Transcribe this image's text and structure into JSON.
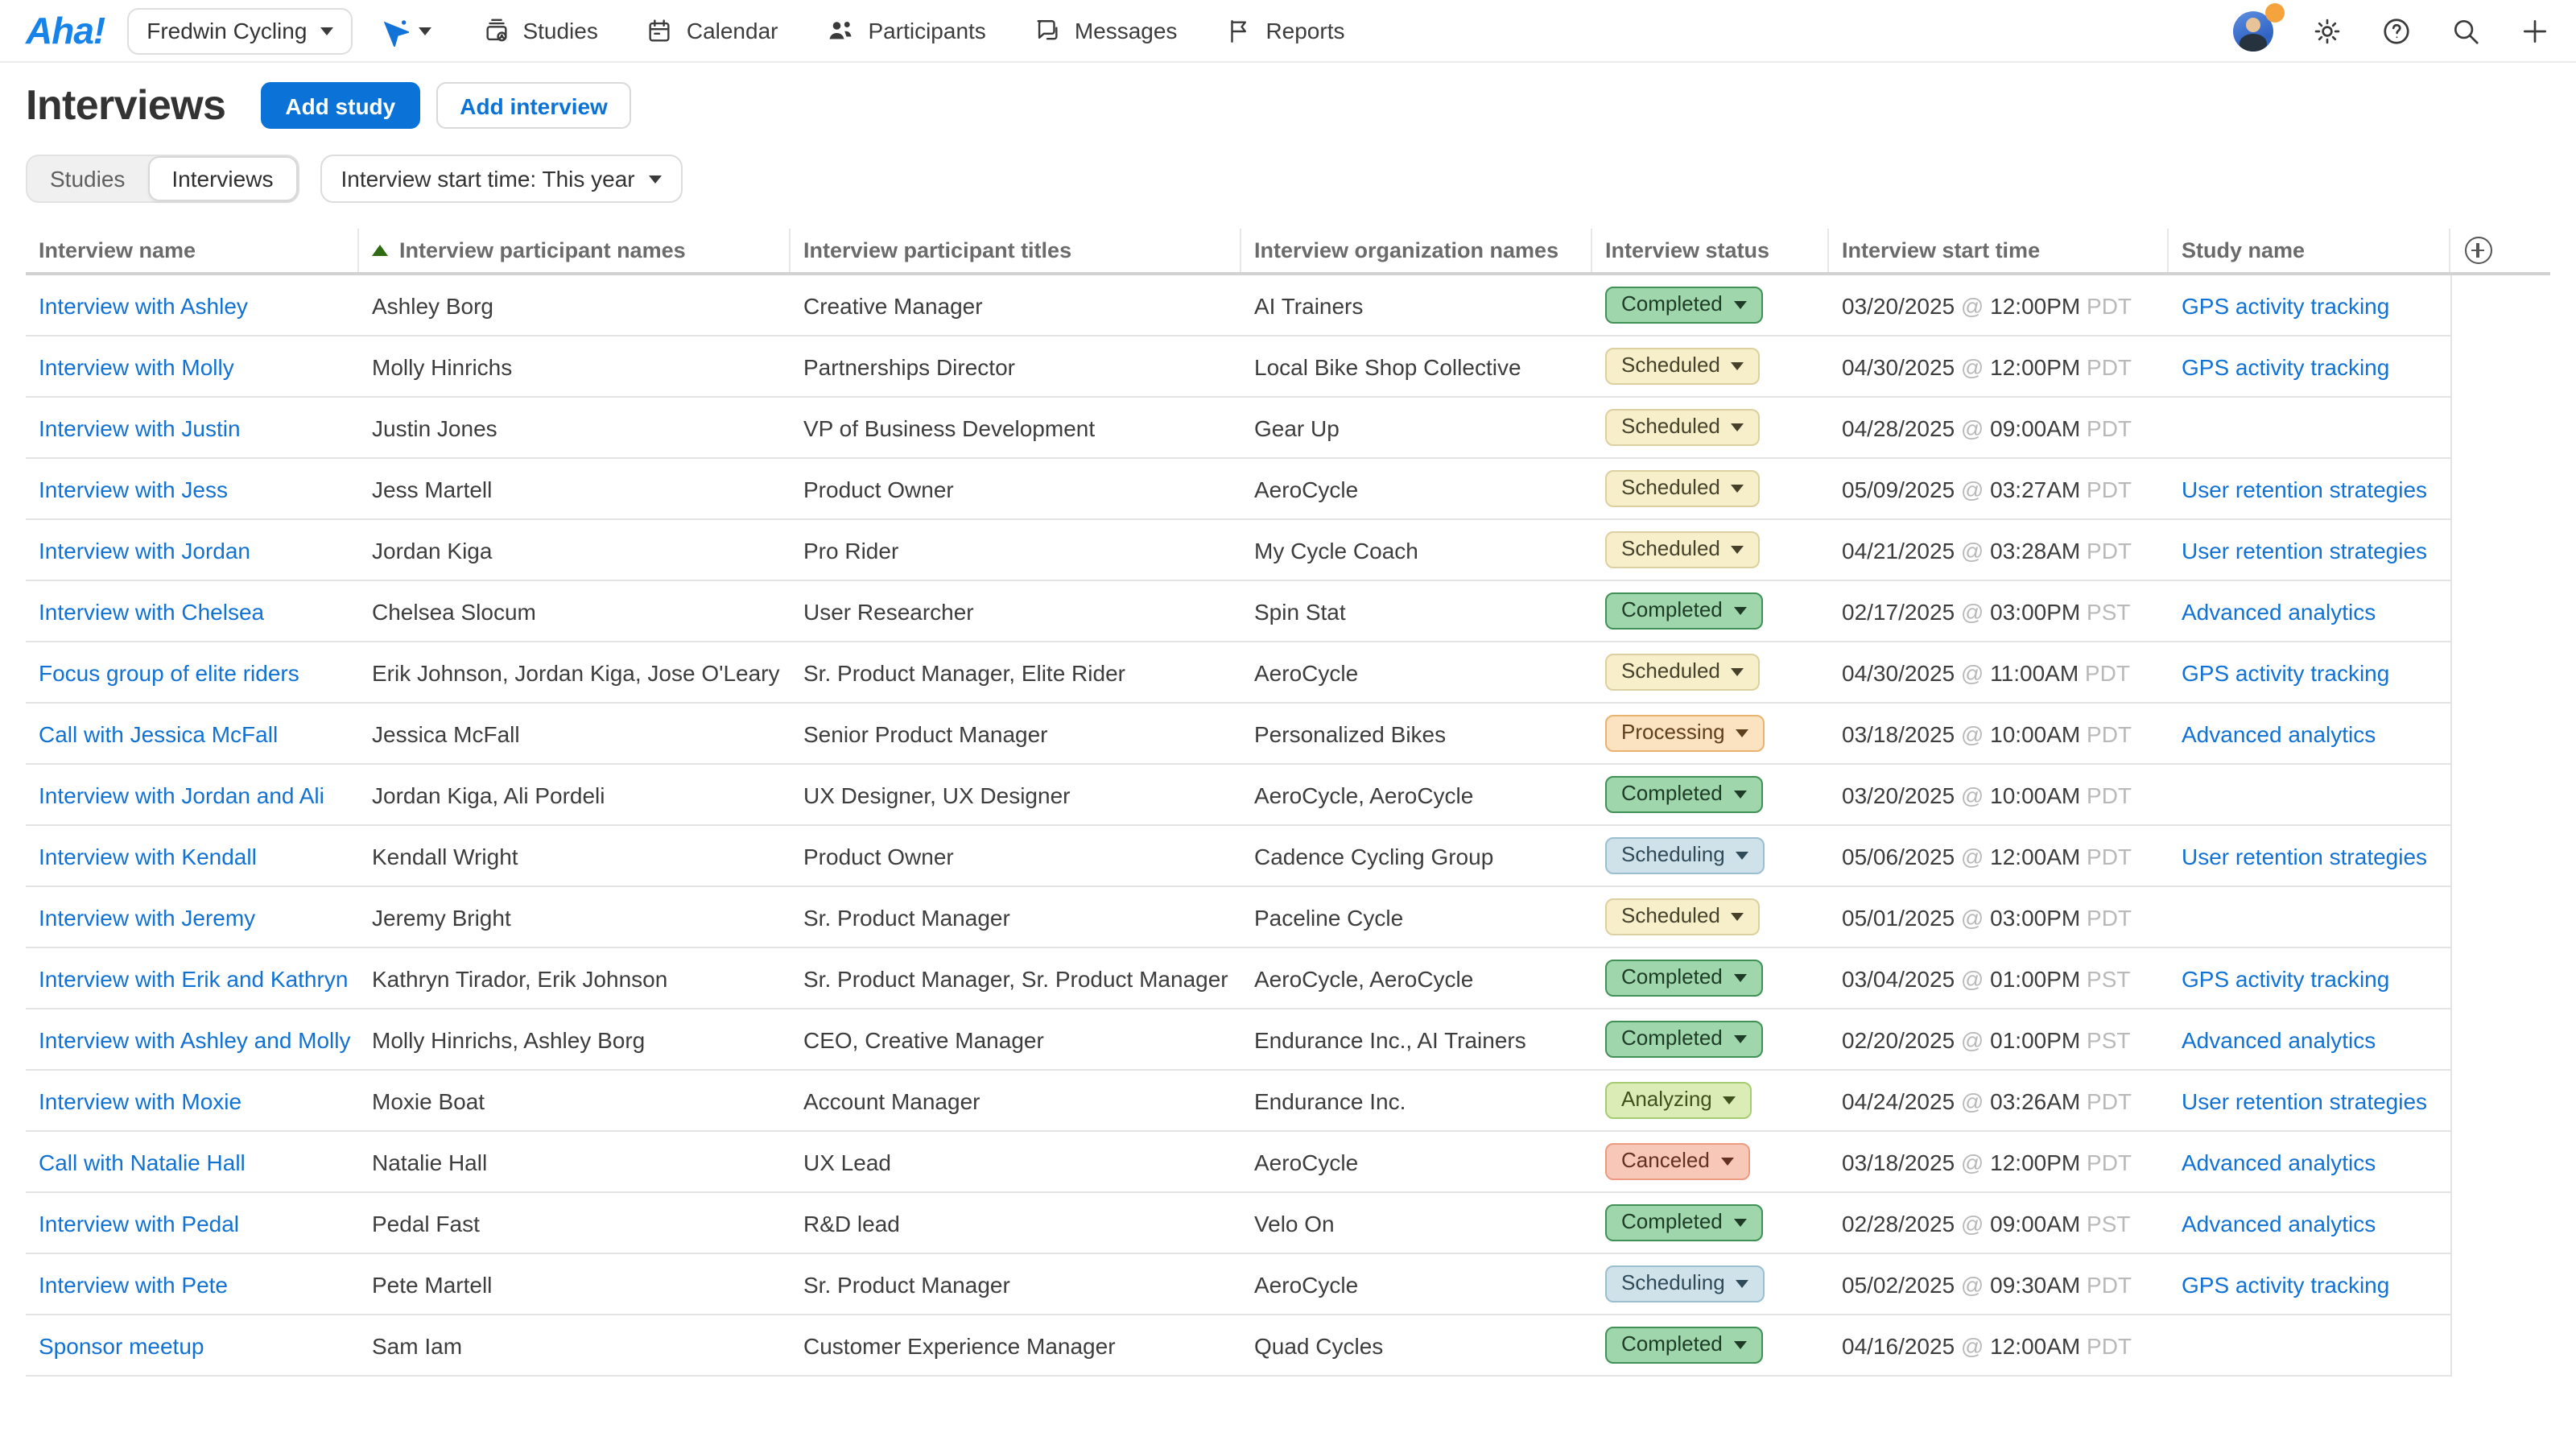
{
  "colors": {
    "accent_blue": "#0b73d7",
    "link_blue": "#1172d4",
    "logo_blue": "#1583e9",
    "presence_orange": "#f5a33c",
    "sort_arrow_green": "#2e6b12"
  },
  "topbar": {
    "logo": "Aha!",
    "workspace": "Fredwin Cycling",
    "nav": [
      {
        "label": "Studies"
      },
      {
        "label": "Calendar"
      },
      {
        "label": "Participants"
      },
      {
        "label": "Messages"
      },
      {
        "label": "Reports"
      }
    ]
  },
  "page": {
    "title": "Interviews",
    "add_study_label": "Add study",
    "add_interview_label": "Add interview",
    "segments": [
      {
        "label": "Studies",
        "selected": false
      },
      {
        "label": "Interviews",
        "selected": true
      }
    ],
    "filter_label": "Interview start time: This year"
  },
  "table": {
    "columns": [
      "Interview name",
      "Interview participant names",
      "Interview participant titles",
      "Interview organization names",
      "Interview status",
      "Interview start time",
      "Study name"
    ],
    "sort": {
      "column": "Interview participant names",
      "direction": "ascending"
    },
    "status_styles": {
      "Completed": {
        "bg": "#9fd6ab",
        "border": "#3f9156",
        "text": "#1d3b26"
      },
      "Scheduled": {
        "bg": "#f6efca",
        "border": "#ddd0a0",
        "text": "#45412a"
      },
      "Processing": {
        "bg": "#fbe2c0",
        "border": "#e9b26e",
        "text": "#5f401d"
      },
      "Scheduling": {
        "bg": "#cfe1e9",
        "border": "#9bbfd0",
        "text": "#2f4b59"
      },
      "Analyzing": {
        "bg": "#dcecb6",
        "border": "#a6cc71",
        "text": "#3f521e"
      },
      "Canceled": {
        "bg": "#f7c8b8",
        "border": "#ec9b81",
        "text": "#64301f"
      }
    },
    "rows": [
      {
        "name": "Interview with Ashley",
        "participants": "Ashley Borg",
        "titles": "Creative Manager",
        "orgs": "AI Trainers",
        "status": "Completed",
        "date": "03/20/2025",
        "time": "12:00PM",
        "tz": "PDT",
        "study": "GPS activity tracking"
      },
      {
        "name": "Interview with Molly",
        "participants": "Molly Hinrichs",
        "titles": "Partnerships Director",
        "orgs": "Local Bike Shop Collective",
        "status": "Scheduled",
        "date": "04/30/2025",
        "time": "12:00PM",
        "tz": "PDT",
        "study": "GPS activity tracking"
      },
      {
        "name": "Interview with Justin",
        "participants": "Justin Jones",
        "titles": "VP of Business Development",
        "orgs": "Gear Up",
        "status": "Scheduled",
        "date": "04/28/2025",
        "time": "09:00AM",
        "tz": "PDT",
        "study": ""
      },
      {
        "name": "Interview with Jess",
        "participants": "Jess Martell",
        "titles": "Product Owner",
        "orgs": "AeroCycle",
        "status": "Scheduled",
        "date": "05/09/2025",
        "time": "03:27AM",
        "tz": "PDT",
        "study": "User retention strategies"
      },
      {
        "name": "Interview with Jordan",
        "participants": "Jordan Kiga",
        "titles": "Pro Rider",
        "orgs": "My Cycle Coach",
        "status": "Scheduled",
        "date": "04/21/2025",
        "time": "03:28AM",
        "tz": "PDT",
        "study": "User retention strategies"
      },
      {
        "name": "Interview with Chelsea",
        "participants": "Chelsea Slocum",
        "titles": "User Researcher",
        "orgs": "Spin Stat",
        "status": "Completed",
        "date": "02/17/2025",
        "time": "03:00PM",
        "tz": "PST",
        "study": "Advanced analytics"
      },
      {
        "name": "Focus group of elite riders",
        "participants": "Erik Johnson, Jordan Kiga, Jose O'Leary",
        "titles": "Sr. Product Manager, Elite Rider",
        "orgs": "AeroCycle",
        "status": "Scheduled",
        "date": "04/30/2025",
        "time": "11:00AM",
        "tz": "PDT",
        "study": "GPS activity tracking"
      },
      {
        "name": "Call with Jessica McFall",
        "participants": "Jessica McFall",
        "titles": "Senior Product Manager",
        "orgs": "Personalized Bikes",
        "status": "Processing",
        "date": "03/18/2025",
        "time": "10:00AM",
        "tz": "PDT",
        "study": "Advanced analytics"
      },
      {
        "name": "Interview with Jordan and Ali",
        "participants": "Jordan Kiga, Ali Pordeli",
        "titles": "UX Designer, UX Designer",
        "orgs": "AeroCycle, AeroCycle",
        "status": "Completed",
        "date": "03/20/2025",
        "time": "10:00AM",
        "tz": "PDT",
        "study": ""
      },
      {
        "name": "Interview with Kendall",
        "participants": "Kendall Wright",
        "titles": "Product Owner",
        "orgs": "Cadence Cycling Group",
        "status": "Scheduling",
        "date": "05/06/2025",
        "time": "12:00AM",
        "tz": "PDT",
        "study": "User retention strategies"
      },
      {
        "name": "Interview with Jeremy",
        "participants": "Jeremy Bright",
        "titles": "Sr. Product Manager",
        "orgs": "Paceline Cycle",
        "status": "Scheduled",
        "date": "05/01/2025",
        "time": "03:00PM",
        "tz": "PDT",
        "study": ""
      },
      {
        "name": "Interview with Erik and Kathryn",
        "participants": "Kathryn Tirador, Erik Johnson",
        "titles": "Sr. Product Manager, Sr. Product Manager",
        "orgs": "AeroCycle, AeroCycle",
        "status": "Completed",
        "date": "03/04/2025",
        "time": "01:00PM",
        "tz": "PST",
        "study": "GPS activity tracking"
      },
      {
        "name": "Interview with Ashley and Molly",
        "participants": "Molly Hinrichs, Ashley Borg",
        "titles": "CEO, Creative Manager",
        "orgs": "Endurance Inc., AI Trainers",
        "status": "Completed",
        "date": "02/20/2025",
        "time": "01:00PM",
        "tz": "PST",
        "study": "Advanced analytics"
      },
      {
        "name": "Interview with Moxie",
        "participants": "Moxie Boat",
        "titles": "Account Manager",
        "orgs": "Endurance Inc.",
        "status": "Analyzing",
        "date": "04/24/2025",
        "time": "03:26AM",
        "tz": "PDT",
        "study": "User retention strategies"
      },
      {
        "name": "Call with Natalie Hall",
        "participants": "Natalie Hall",
        "titles": "UX Lead",
        "orgs": "AeroCycle",
        "status": "Canceled",
        "date": "03/18/2025",
        "time": "12:00PM",
        "tz": "PDT",
        "study": "Advanced analytics"
      },
      {
        "name": "Interview with Pedal",
        "participants": "Pedal Fast",
        "titles": "R&D lead",
        "orgs": "Velo On",
        "status": "Completed",
        "date": "02/28/2025",
        "time": "09:00AM",
        "tz": "PST",
        "study": "Advanced analytics"
      },
      {
        "name": "Interview with Pete",
        "participants": "Pete Martell",
        "titles": "Sr. Product Manager",
        "orgs": "AeroCycle",
        "status": "Scheduling",
        "date": "05/02/2025",
        "time": "09:30AM",
        "tz": "PDT",
        "study": "GPS activity tracking"
      },
      {
        "name": "Sponsor meetup",
        "participants": "Sam Iam",
        "titles": "Customer Experience Manager",
        "orgs": "Quad Cycles",
        "status": "Completed",
        "date": "04/16/2025",
        "time": "12:00AM",
        "tz": "PDT",
        "study": ""
      }
    ]
  }
}
